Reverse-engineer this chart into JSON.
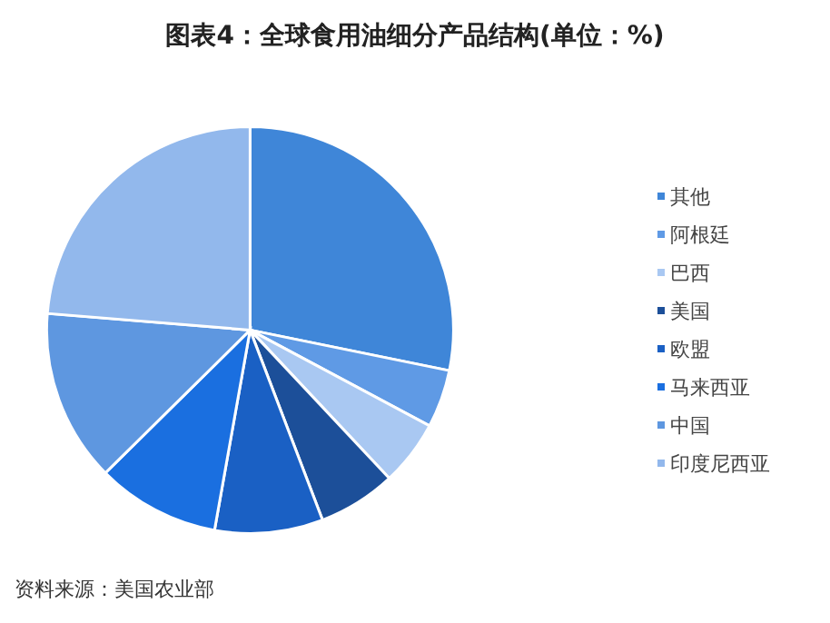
{
  "chart_data": {
    "type": "pie",
    "title": "图表4：全球食用油细分产品结构(单位：%)",
    "categories": [
      "其他",
      "阿根廷",
      "巴西",
      "美国",
      "欧盟",
      "马来西亚",
      "中国",
      "印度尼西亚"
    ],
    "values": [
      28.2,
      4.6,
      5.2,
      6.2,
      8.6,
      9.8,
      13.7,
      23.7
    ],
    "colors": [
      "#3f86d8",
      "#5f9ae5",
      "#a9c8f2",
      "#1c4f99",
      "#1a60c4",
      "#1a6fe0",
      "#5e97e0",
      "#92b8ec"
    ],
    "legend": "right",
    "annotations": [
      "资料来源：美国农业部"
    ]
  }
}
